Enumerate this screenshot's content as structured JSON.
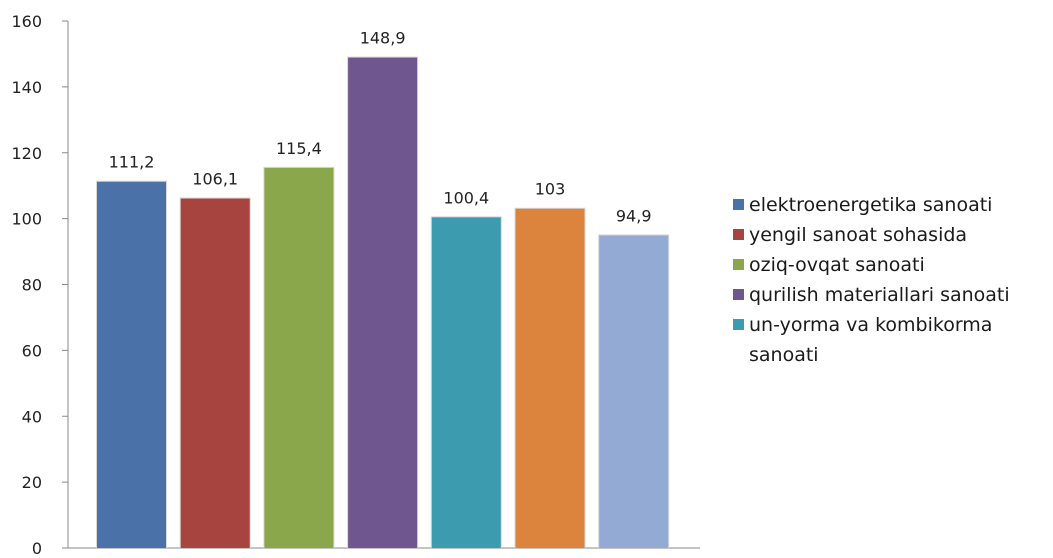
{
  "chart_data": {
    "type": "bar",
    "ylim": [
      0,
      160
    ],
    "yticks": [
      0,
      20,
      40,
      60,
      80,
      100,
      120,
      140,
      160
    ],
    "value_labels": [
      "111,2",
      "106,1",
      "115,4",
      "148,9",
      "100,4",
      "103",
      "94,9"
    ],
    "series": [
      {
        "name": "elektroenergetika sanoati",
        "value": 111.2,
        "color": "#4a72a8"
      },
      {
        "name": "yengil sanoat sohasida",
        "value": 106.1,
        "color": "#a8443f"
      },
      {
        "name": "oziq-ovqat sanoati",
        "value": 115.4,
        "color": "#8aa74b"
      },
      {
        "name": "qurilish materiallari sanoati",
        "value": 148.9,
        "color": "#6f568e"
      },
      {
        "name": "un-yorma va kombikorma sanoati",
        "value": 100.4,
        "color": "#3d9bb0"
      },
      {
        "name": "",
        "value": 103,
        "color": "#dc843e"
      },
      {
        "name": "",
        "value": 94.9,
        "color": "#93aad4"
      }
    ],
    "legend": [
      {
        "label": "elektroenergetika sanoati",
        "color": "#4a72a8"
      },
      {
        "label": "yengil sanoat sohasida",
        "color": "#a8443f"
      },
      {
        "label": "oziq-ovqat sanoati",
        "color": "#8aa74b"
      },
      {
        "label": "qurilish materiallari sanoati",
        "color": "#6f568e"
      },
      {
        "label": "un-yorma va kombikorma sanoati",
        "color": "#3d9bb0"
      }
    ],
    "legend_position": "right",
    "grid": false
  }
}
